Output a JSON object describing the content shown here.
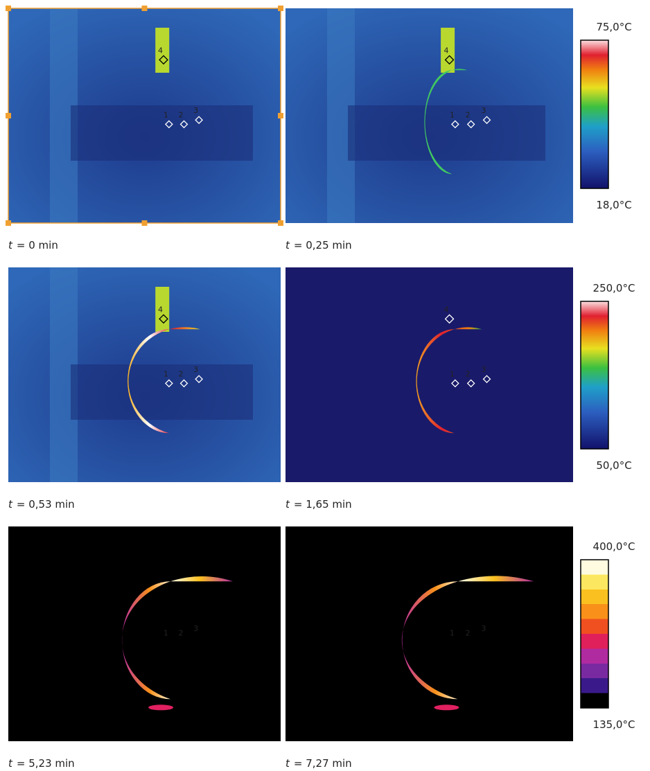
{
  "panels": [
    {
      "label": {
        "symbol": "t",
        "text": "= 0 min"
      },
      "points": [
        "1",
        "2",
        "3",
        "4"
      ]
    },
    {
      "label": {
        "symbol": "t",
        "text": "= 0,25 min"
      },
      "points": [
        "1",
        "2",
        "3",
        "4"
      ]
    },
    {
      "label": {
        "symbol": "t",
        "text": "= 0,53 min"
      },
      "points": [
        "1",
        "2",
        "3",
        "4"
      ]
    },
    {
      "label": {
        "symbol": "t",
        "text": "= 1,65 min"
      },
      "points": [
        "1",
        "2",
        "3",
        "4"
      ]
    },
    {
      "label": {
        "symbol": "t",
        "text": "= 5,23 min"
      },
      "points": [
        "1",
        "2",
        "3"
      ]
    },
    {
      "label": {
        "symbol": "t",
        "text": "= 7,27 min"
      },
      "points": [
        "1",
        "2",
        "3"
      ]
    }
  ],
  "colorbars": [
    {
      "max": "75,0°C",
      "min": "18,0°C"
    },
    {
      "max": "250,0°C",
      "min": "50,0°C"
    },
    {
      "max": "400,0°C",
      "min": "135,0°C"
    }
  ]
}
